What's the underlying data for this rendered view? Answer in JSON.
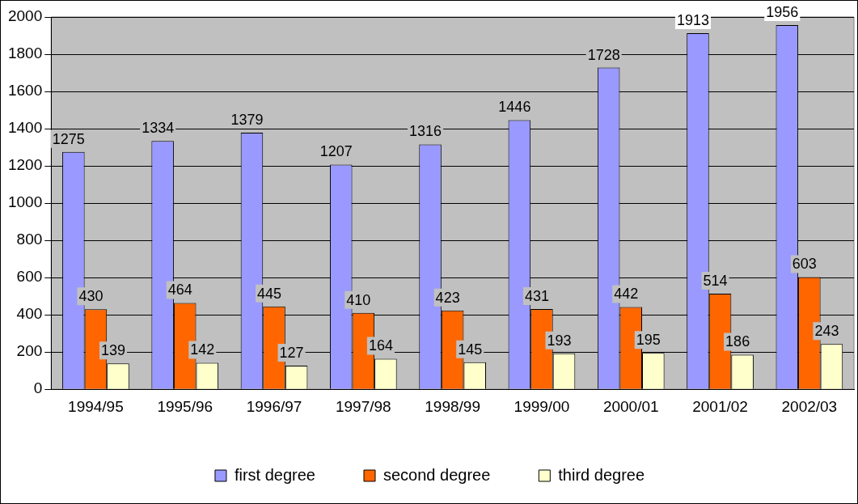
{
  "chart_data": {
    "type": "bar",
    "categories": [
      "1994/95",
      "1995/96",
      "1996/97",
      "1997/98",
      "1998/99",
      "1999/00",
      "2000/01",
      "2001/02",
      "2002/03"
    ],
    "series": [
      {
        "name": "first degree",
        "color": "#9999ff",
        "values": [
          1275,
          1334,
          1379,
          1207,
          1316,
          1446,
          1728,
          1913,
          1956
        ]
      },
      {
        "name": "second degree",
        "color": "#ff6600",
        "values": [
          430,
          464,
          445,
          410,
          423,
          431,
          442,
          514,
          603
        ]
      },
      {
        "name": "third degree",
        "color": "#ffffcc",
        "values": [
          139,
          142,
          127,
          164,
          145,
          193,
          195,
          186,
          243
        ]
      }
    ],
    "ylim": [
      0,
      2000
    ],
    "yticks": [
      0,
      200,
      400,
      600,
      800,
      1000,
      1200,
      1400,
      1600,
      1800,
      2000
    ],
    "grid": "y",
    "legend": "bottom",
    "data_labels": true
  }
}
